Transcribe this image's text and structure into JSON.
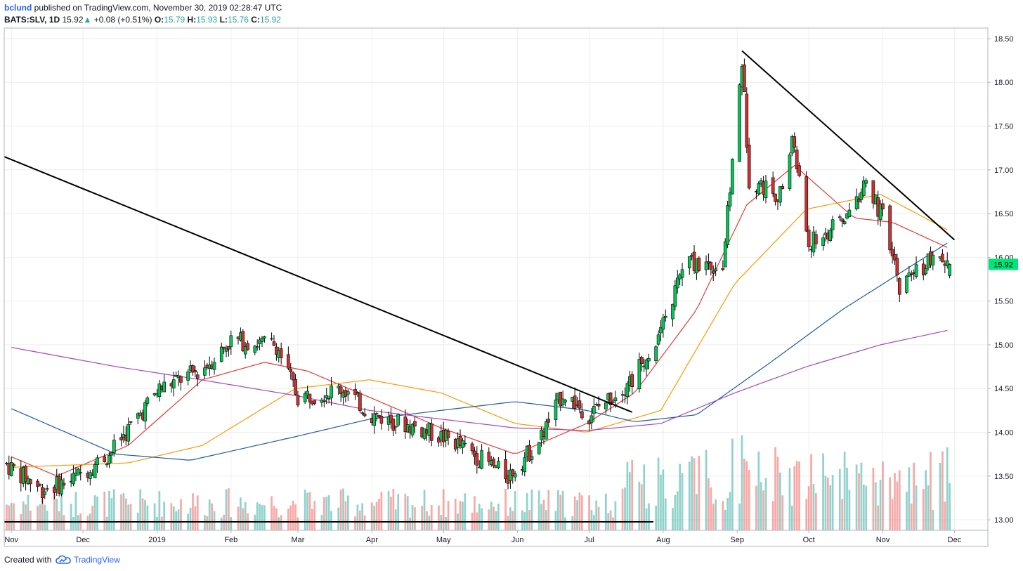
{
  "header": {
    "author": "bclund",
    "published_text": "published on TradingView.com, November 30, 2019 02:28:47 UTC",
    "symbol": "BATS:SLV, 1D",
    "last": "15.92",
    "change_arrow": "▲",
    "change": "+0.08 (+0.51%)",
    "o_label": "O:",
    "o_value": "15.79",
    "h_label": "H:",
    "h_value": "15.93",
    "l_label": "L:",
    "l_value": "15.76",
    "c_label": "C:",
    "c_value": "15.92"
  },
  "footer": {
    "created_with": "Created with",
    "brand": "TradingView",
    "logo_icon": "tradingview-cloud-icon"
  },
  "colors": {
    "up": "#26a69a",
    "up_fill": "#00c853",
    "down": "#d32f2f",
    "ma20": "#e53935",
    "ma50": "#ff9800",
    "ma100": "#1e5aa8",
    "ma200": "#ab47bc",
    "trendline": "#000000",
    "price_label_bg": "#00e676",
    "grid": "#eeeeee"
  },
  "chart_data": {
    "type": "candlestick",
    "symbol": "BATS:SLV",
    "interval": "1D",
    "ylim": [
      12.88,
      18.62
    ],
    "y_ticks": [
      "13.00",
      "13.50",
      "14.00",
      "14.50",
      "15.00",
      "15.50",
      "16.00",
      "16.50",
      "17.00",
      "17.50",
      "18.00",
      "18.50"
    ],
    "x_ticks": [
      "Nov",
      "Dec",
      "2019",
      "Feb",
      "Mar",
      "Apr",
      "May",
      "Jun",
      "Jul",
      "Aug",
      "Sep",
      "Oct",
      "Nov",
      "Dec"
    ],
    "last_price_label": "15.92",
    "grid": true,
    "candles_ohlc_sample": [
      [
        "2018-11-01",
        13.62,
        13.8,
        13.5,
        13.78
      ],
      [
        "2018-11-15",
        13.35,
        13.62,
        13.22,
        13.58
      ],
      [
        "2018-12-03",
        13.6,
        13.88,
        13.55,
        13.82
      ],
      [
        "2018-12-20",
        13.72,
        13.98,
        13.68,
        13.92
      ],
      [
        "2019-01-02",
        14.4,
        14.62,
        14.35,
        14.55
      ],
      [
        "2019-01-15",
        14.68,
        14.8,
        14.62,
        14.72
      ],
      [
        "2019-02-01",
        15.0,
        15.2,
        14.95,
        15.15
      ],
      [
        "2019-02-20",
        15.02,
        15.23,
        14.9,
        15.05
      ],
      [
        "2019-03-01",
        14.62,
        14.7,
        14.28,
        14.32
      ],
      [
        "2019-03-20",
        14.48,
        14.62,
        14.4,
        14.55
      ],
      [
        "2019-04-01",
        14.28,
        14.3,
        14.1,
        14.15
      ],
      [
        "2019-04-20",
        14.05,
        14.12,
        13.98,
        14.08
      ],
      [
        "2019-05-01",
        14.0,
        14.05,
        13.9,
        13.95
      ],
      [
        "2019-05-28",
        13.45,
        13.6,
        13.38,
        13.55
      ],
      [
        "2019-06-10",
        13.98,
        14.02,
        13.85,
        13.9
      ],
      [
        "2019-06-21",
        14.4,
        14.55,
        14.35,
        14.48
      ],
      [
        "2019-07-01",
        14.3,
        14.35,
        14.1,
        14.15
      ],
      [
        "2019-07-19",
        14.55,
        14.7,
        14.5,
        14.62
      ],
      [
        "2019-08-07",
        15.8,
        16.2,
        15.75,
        16.12
      ],
      [
        "2019-08-26",
        16.4,
        16.45,
        15.6,
        15.95
      ],
      [
        "2019-09-03",
        17.9,
        18.35,
        17.85,
        18.3
      ],
      [
        "2019-09-05",
        17.95,
        18.0,
        16.9,
        17.05
      ],
      [
        "2019-09-24",
        17.4,
        17.52,
        17.25,
        17.3
      ],
      [
        "2019-10-01",
        16.2,
        16.45,
        16.05,
        16.4
      ],
      [
        "2019-10-25",
        16.9,
        16.95,
        16.55,
        16.62
      ],
      [
        "2019-11-01",
        16.52,
        16.6,
        16.3,
        16.4
      ],
      [
        "2019-11-08",
        15.8,
        15.85,
        15.58,
        15.7
      ],
      [
        "2019-11-29",
        15.79,
        15.93,
        15.76,
        15.92
      ]
    ],
    "moving_averages": [
      {
        "period": 20,
        "points": [
          [
            "2018-11-01",
            13.72
          ],
          [
            "2018-11-20",
            13.5
          ],
          [
            "2018-12-20",
            13.85
          ],
          [
            "2019-01-20",
            14.6
          ],
          [
            "2019-02-15",
            14.8
          ],
          [
            "2019-03-05",
            14.7
          ],
          [
            "2019-03-31",
            14.4
          ],
          [
            "2019-04-30",
            14.05
          ],
          [
            "2019-05-31",
            13.75
          ],
          [
            "2019-06-30",
            14.1
          ],
          [
            "2019-07-20",
            14.45
          ],
          [
            "2019-08-15",
            15.4
          ],
          [
            "2019-09-05",
            16.6
          ],
          [
            "2019-09-25",
            17.05
          ],
          [
            "2019-10-20",
            16.45
          ],
          [
            "2019-11-05",
            16.4
          ],
          [
            "2019-11-29",
            16.1
          ]
        ]
      },
      {
        "period": 50,
        "points": [
          [
            "2018-11-01",
            13.6
          ],
          [
            "2018-12-20",
            13.65
          ],
          [
            "2019-01-20",
            13.85
          ],
          [
            "2019-02-28",
            14.5
          ],
          [
            "2019-03-31",
            14.6
          ],
          [
            "2019-04-30",
            14.45
          ],
          [
            "2019-05-31",
            14.1
          ],
          [
            "2019-06-30",
            14.0
          ],
          [
            "2019-07-31",
            14.25
          ],
          [
            "2019-08-31",
            15.7
          ],
          [
            "2019-09-30",
            16.55
          ],
          [
            "2019-10-31",
            16.72
          ],
          [
            "2019-11-29",
            16.3
          ]
        ]
      },
      {
        "period": 100,
        "points": [
          [
            "2018-11-01",
            14.27
          ],
          [
            "2018-12-15",
            13.75
          ],
          [
            "2019-01-15",
            13.68
          ],
          [
            "2019-02-28",
            13.95
          ],
          [
            "2019-03-31",
            14.15
          ],
          [
            "2019-04-30",
            14.25
          ],
          [
            "2019-05-31",
            14.35
          ],
          [
            "2019-06-30",
            14.25
          ],
          [
            "2019-07-20",
            14.12
          ],
          [
            "2019-08-15",
            14.2
          ],
          [
            "2019-09-15",
            14.8
          ],
          [
            "2019-10-15",
            15.4
          ],
          [
            "2019-11-29",
            16.18
          ]
        ]
      },
      {
        "period": 200,
        "points": [
          [
            "2018-11-01",
            14.97
          ],
          [
            "2018-12-15",
            14.75
          ],
          [
            "2019-01-15",
            14.62
          ],
          [
            "2019-02-28",
            14.42
          ],
          [
            "2019-03-31",
            14.25
          ],
          [
            "2019-04-30",
            14.15
          ],
          [
            "2019-05-31",
            14.05
          ],
          [
            "2019-06-30",
            14.02
          ],
          [
            "2019-07-31",
            14.1
          ],
          [
            "2019-08-31",
            14.45
          ],
          [
            "2019-09-30",
            14.75
          ],
          [
            "2019-10-31",
            15.0
          ],
          [
            "2019-11-29",
            15.17
          ]
        ]
      }
    ],
    "trendlines": [
      {
        "from": [
          "2018-10-29",
          17.15
        ],
        "to": [
          "2019-07-19",
          14.23
        ]
      },
      {
        "from": [
          "2019-09-03",
          18.36
        ],
        "to": [
          "2019-12-01",
          16.2
        ]
      }
    ],
    "volume_note": "volume histogram bars along bottom, green for up days and red for down days"
  }
}
